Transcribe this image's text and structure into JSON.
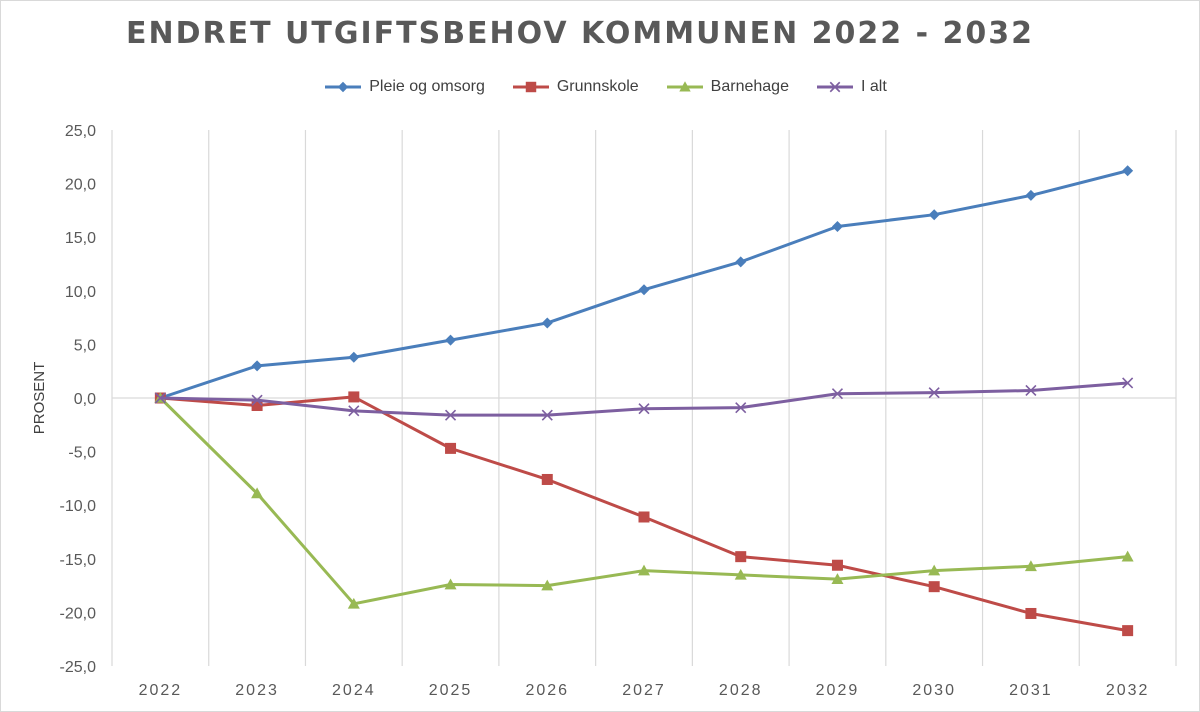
{
  "chart_data": {
    "type": "line",
    "title": "ENDRET UTGIFTSBEHOV KOMMUNEN 2022 - 2032",
    "xlabel": "",
    "ylabel": "PROSENT",
    "categories": [
      "2022",
      "2023",
      "2024",
      "2025",
      "2026",
      "2027",
      "2028",
      "2029",
      "2030",
      "2031",
      "2032"
    ],
    "ylim": [
      -25,
      25
    ],
    "y_ticks": [
      "25,0",
      "20,0",
      "15,0",
      "10,0",
      "5,0",
      "0,0",
      "-5,0",
      "-10,0",
      "-15,0",
      "-20,0",
      "-25,0"
    ],
    "y_tick_values": [
      25,
      20,
      15,
      10,
      5,
      0,
      -5,
      -10,
      -15,
      -20,
      -25
    ],
    "grid": "vertical",
    "legend_position": "top",
    "series": [
      {
        "name": "Pleie og omsorg",
        "color": "#4a7ebb",
        "marker": "diamond",
        "values": [
          0.0,
          3.0,
          3.8,
          5.4,
          7.0,
          10.1,
          12.7,
          16.0,
          17.1,
          18.9,
          21.2
        ]
      },
      {
        "name": "Grunnskole",
        "color": "#be4b48",
        "marker": "square",
        "values": [
          0.0,
          -0.7,
          0.1,
          -4.7,
          -7.6,
          -11.1,
          -14.8,
          -15.6,
          -17.6,
          -20.1,
          -21.7
        ]
      },
      {
        "name": "Barnehage",
        "color": "#98b954",
        "marker": "triangle",
        "values": [
          0.0,
          -8.9,
          -19.2,
          -17.4,
          -17.5,
          -16.1,
          -16.5,
          -16.9,
          -16.1,
          -15.7,
          -14.8
        ]
      },
      {
        "name": "I alt",
        "color": "#7d5fa0",
        "marker": "x",
        "values": [
          0.0,
          -0.2,
          -1.2,
          -1.6,
          -1.6,
          -1.0,
          -0.9,
          0.4,
          0.5,
          0.7,
          1.4
        ]
      }
    ]
  }
}
